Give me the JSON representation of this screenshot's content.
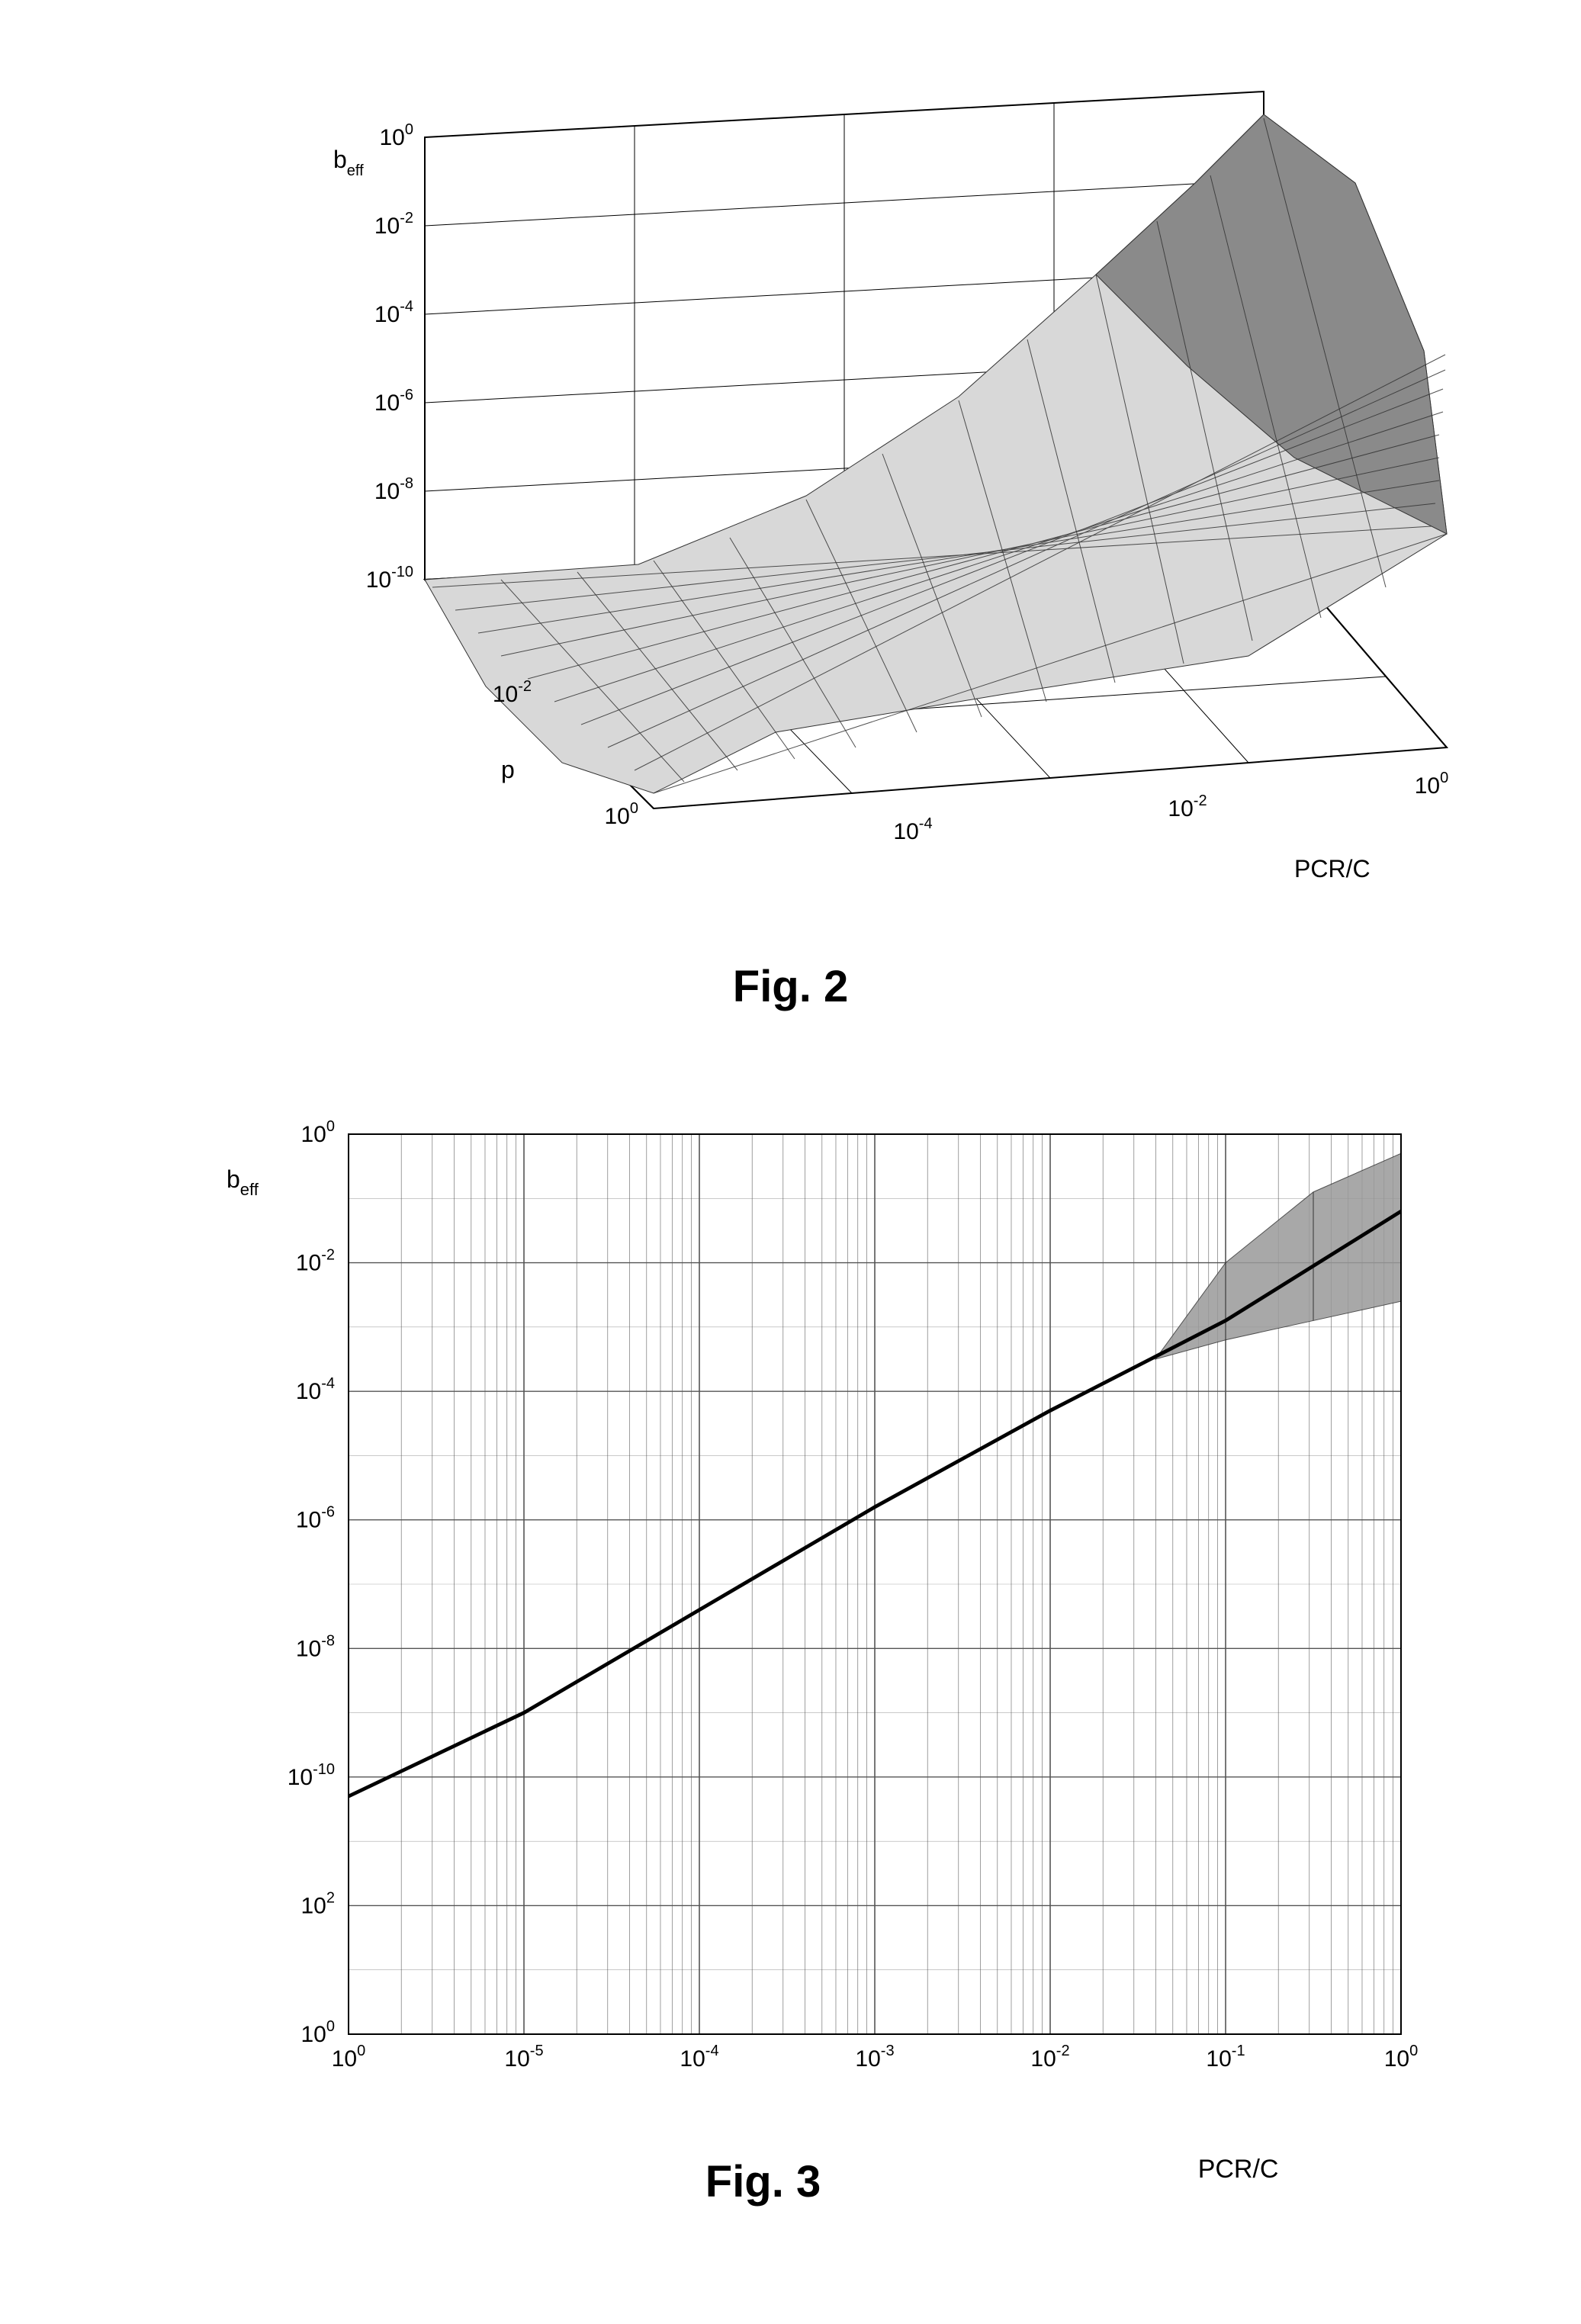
{
  "fig2": {
    "caption": "Fig. 2",
    "type": "surface-3d",
    "z_axis": {
      "title": "b_eff",
      "ticks": [
        "10^0",
        "10^-2",
        "10^-4",
        "10^-6",
        "10^-8",
        "10^-10"
      ],
      "lim": [
        -10,
        0
      ],
      "scale": "log"
    },
    "x_axis": {
      "title": "PCR/C",
      "ticks": [
        "10^-4",
        "10^-2",
        "10^0"
      ],
      "lim": [
        -5,
        0
      ],
      "scale": "log"
    },
    "y_axis": {
      "title": "p",
      "ticks": [
        "10^-2",
        "10^0"
      ],
      "lim": [
        -3,
        0
      ],
      "scale": "log"
    },
    "background_color": "#ffffff",
    "grid_color": "#000000",
    "surface_mesh_color": "#333333",
    "surface_fill_light": "#f5f5f5",
    "surface_fill_dark": "#8a8a8a",
    "line_width": 1,
    "surface_description": "b_eff rises from ~10^-10 at low PCR/C toward ~10^0 at PCR/C=1; spread across p axis widens near PCR/C=1 (front-right corner peaks)."
  },
  "fig3": {
    "caption": "Fig. 3",
    "type": "line-log-log",
    "y_axis": {
      "title": "b_eff",
      "ticks": [
        "10^0",
        "10^-2",
        "10^-4",
        "10^-6",
        "10^-8",
        "10^-10",
        "10^2",
        "10^0"
      ],
      "tick_exponents": [
        0,
        -2,
        -4,
        -6,
        -8,
        -10,
        -12,
        -14
      ],
      "lim": [
        -14,
        0
      ],
      "scale": "log"
    },
    "x_axis": {
      "title": "PCR/C",
      "ticks": [
        "10^0",
        "10^-5",
        "10^-4",
        "10^-3",
        "10^-2",
        "10^-1",
        "10^0"
      ],
      "tick_exponents": [
        -6,
        -5,
        -4,
        -3,
        -2,
        -1,
        0
      ],
      "lim": [
        -6,
        0
      ],
      "scale": "log"
    },
    "background_color": "#ffffff",
    "grid_color": "#555555",
    "minor_grid": true,
    "line_color": "#000000",
    "line_width": 3,
    "fan_fill": "#9a9a9a",
    "series_main": {
      "points": [
        {
          "x": -6,
          "y": -10.3
        },
        {
          "x": -5,
          "y": -9.0
        },
        {
          "x": -4,
          "y": -7.4
        },
        {
          "x": -3,
          "y": -5.8
        },
        {
          "x": -2,
          "y": -4.3
        },
        {
          "x": -1,
          "y": -2.9
        },
        {
          "x": 0,
          "y": -1.2
        }
      ]
    },
    "fan_region": {
      "start_x": -1.4,
      "upper_points": [
        {
          "x": -1.4,
          "y": -3.5
        },
        {
          "x": -1.0,
          "y": -2.0
        },
        {
          "x": -0.5,
          "y": -0.9
        },
        {
          "x": 0.0,
          "y": -0.3
        }
      ],
      "lower_points": [
        {
          "x": -1.4,
          "y": -3.5
        },
        {
          "x": -1.0,
          "y": -3.2
        },
        {
          "x": -0.5,
          "y": -2.9
        },
        {
          "x": 0.0,
          "y": -2.6
        }
      ]
    }
  }
}
